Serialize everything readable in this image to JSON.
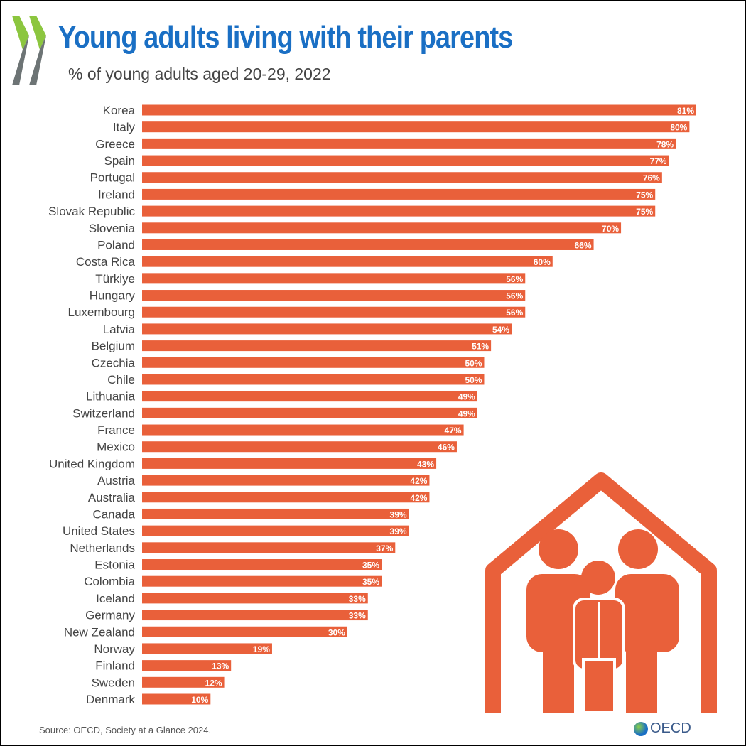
{
  "header": {
    "title": "Young adults living with their parents",
    "subtitle": "% of young adults aged 20-29, 2022"
  },
  "footer": {
    "source": "Source: OECD, Society at a Glance 2024.",
    "logo": "OECD"
  },
  "colors": {
    "bar": "#e9603a",
    "title": "#1a6fc4",
    "logo_green": "#8cc63f",
    "logo_gray": "#6d7475"
  },
  "chart_data": {
    "type": "bar",
    "orientation": "horizontal",
    "title": "Young adults living with their parents",
    "subtitle": "% of young adults aged 20-29, 2022",
    "categories": [
      "Korea",
      "Italy",
      "Greece",
      "Spain",
      "Portugal",
      "Ireland",
      "Slovak Republic",
      "Slovenia",
      "Poland",
      "Costa Rica",
      "Türkiye",
      "Hungary",
      "Luxembourg",
      "Latvia",
      "Belgium",
      "Czechia",
      "Chile",
      "Lithuania",
      "Switzerland",
      "France",
      "Mexico",
      "United Kingdom",
      "Austria",
      "Australia",
      "Canada",
      "United States",
      "Netherlands",
      "Estonia",
      "Colombia",
      "Iceland",
      "Germany",
      "New Zealand",
      "Norway",
      "Finland",
      "Sweden",
      "Denmark"
    ],
    "values": [
      81,
      80,
      78,
      77,
      76,
      75,
      75,
      70,
      66,
      60,
      56,
      56,
      56,
      54,
      51,
      50,
      50,
      49,
      49,
      47,
      46,
      43,
      42,
      42,
      39,
      39,
      37,
      35,
      35,
      33,
      33,
      30,
      19,
      13,
      12,
      10
    ],
    "labels": [
      "81%",
      "80%",
      "78%",
      "77%",
      "76%",
      "75%",
      "75%",
      "70%",
      "66%",
      "60%",
      "56%",
      "56%",
      "56%",
      "54%",
      "51%",
      "50%",
      "50%",
      "49%",
      "49%",
      "47%",
      "46%",
      "43%",
      "42%",
      "42%",
      "39%",
      "39%",
      "37%",
      "35%",
      "35%",
      "33%",
      "33%",
      "30%",
      "19%",
      "13%",
      "12%",
      "10%"
    ],
    "xlim": [
      0,
      81
    ],
    "grid": false
  }
}
